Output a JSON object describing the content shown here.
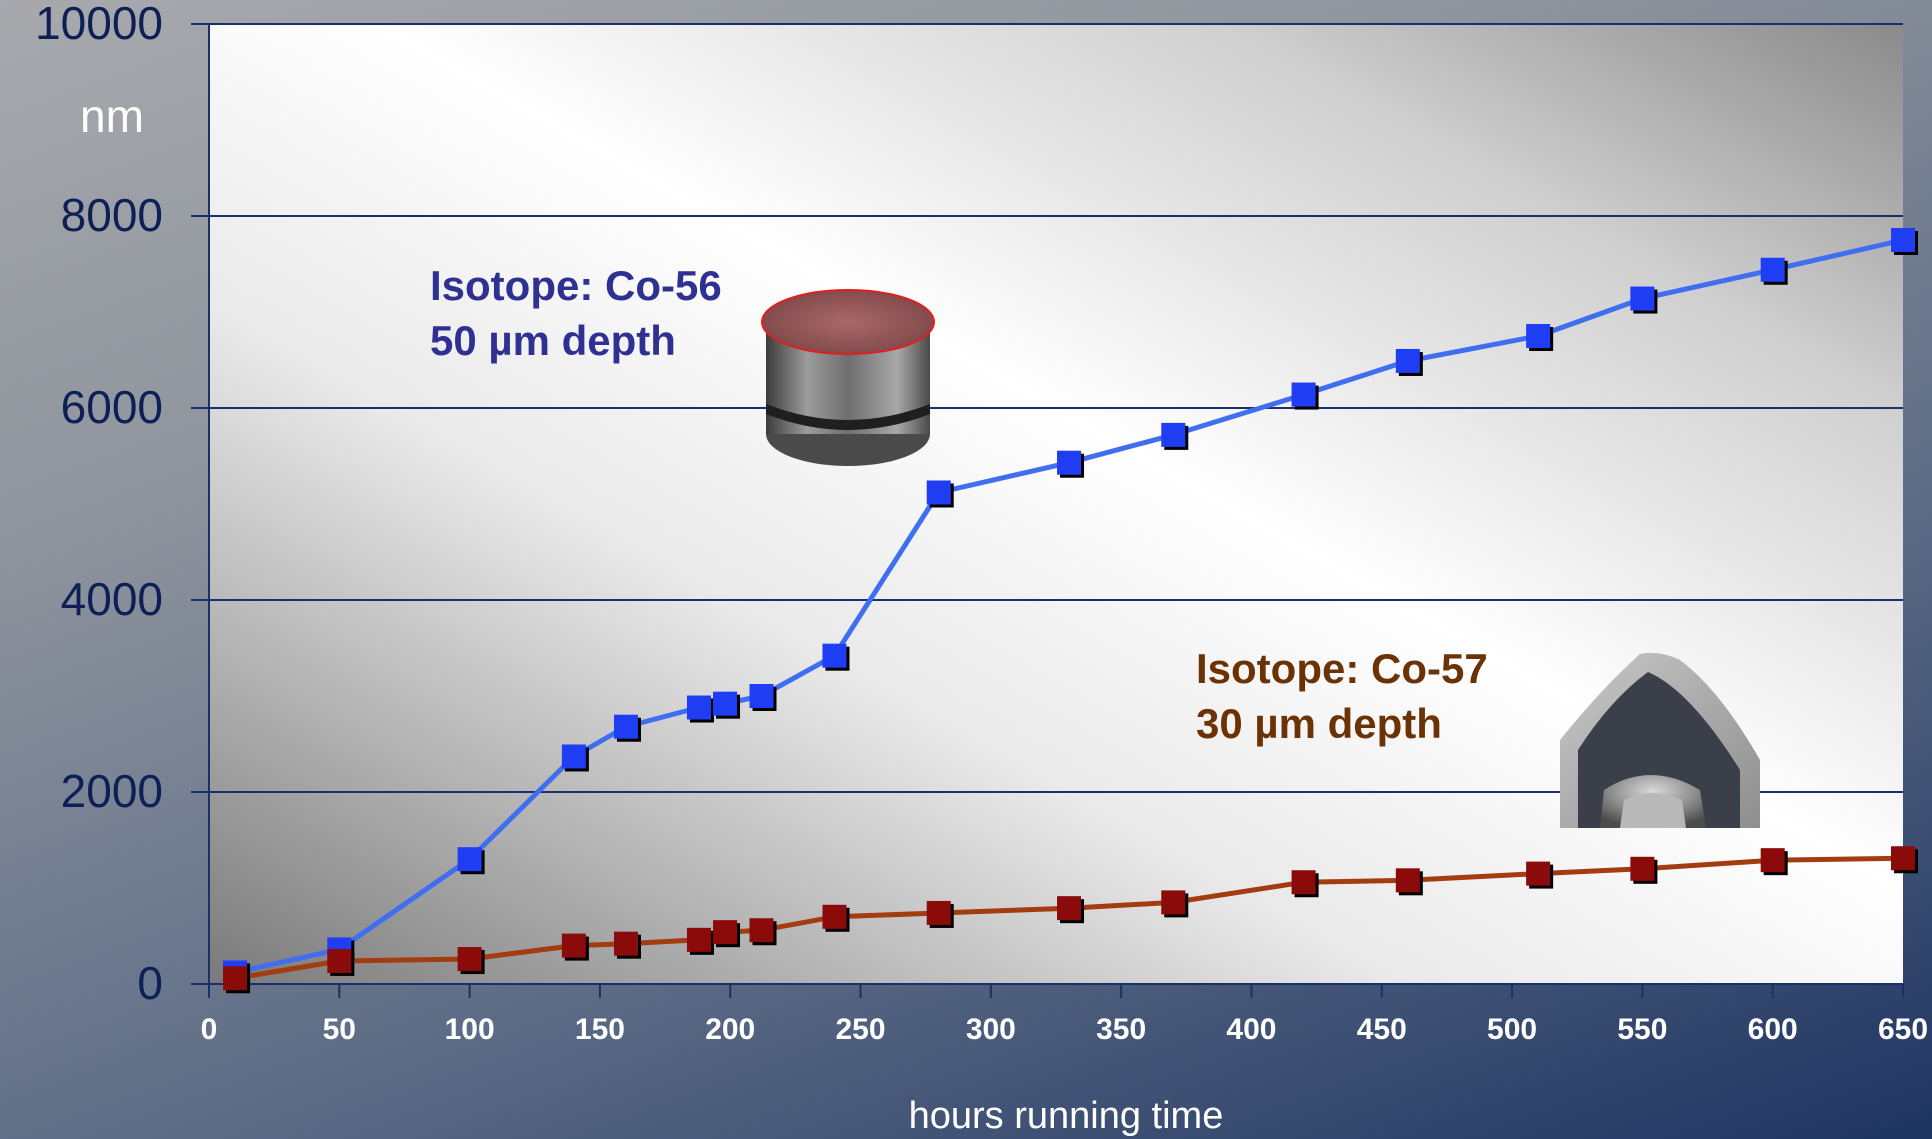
{
  "chart_data": {
    "type": "line",
    "title": "",
    "xlabel": "hours running time",
    "ylabel": "nm",
    "xlim": [
      0,
      650
    ],
    "ylim": [
      0,
      10000
    ],
    "x_ticks": [
      0,
      50,
      100,
      150,
      200,
      250,
      300,
      350,
      400,
      450,
      500,
      550,
      600,
      650
    ],
    "y_ticks": [
      0,
      2000,
      4000,
      6000,
      8000,
      10000
    ],
    "grid": "horizontal",
    "series": [
      {
        "color": "#1f3df2",
        "line_color": "#3f6ff0",
        "points": [
          [
            10,
            120
          ],
          [
            50,
            360
          ],
          [
            100,
            1300
          ],
          [
            140,
            2370
          ],
          [
            160,
            2680
          ],
          [
            188,
            2880
          ],
          [
            198,
            2920
          ],
          [
            212,
            3000
          ],
          [
            240,
            3420
          ],
          [
            280,
            5120
          ],
          [
            330,
            5430
          ],
          [
            370,
            5720
          ],
          [
            420,
            6140
          ],
          [
            460,
            6490
          ],
          [
            510,
            6750
          ],
          [
            550,
            7140
          ],
          [
            600,
            7440
          ],
          [
            650,
            7750
          ]
        ]
      },
      {
        "color": "#8b0b0b",
        "line_color": "#a33c10",
        "points": [
          [
            10,
            60
          ],
          [
            50,
            240
          ],
          [
            100,
            260
          ],
          [
            140,
            400
          ],
          [
            160,
            420
          ],
          [
            188,
            460
          ],
          [
            198,
            540
          ],
          [
            212,
            560
          ],
          [
            240,
            700
          ],
          [
            280,
            740
          ],
          [
            330,
            790
          ],
          [
            370,
            850
          ],
          [
            420,
            1060
          ],
          [
            460,
            1080
          ],
          [
            510,
            1150
          ],
          [
            550,
            1200
          ],
          [
            600,
            1290
          ],
          [
            650,
            1310
          ]
        ]
      }
    ],
    "annotations": [
      {
        "lines": [
          "Isotope: Co-56",
          "50 µm depth"
        ],
        "color": "#2e3192"
      },
      {
        "lines": [
          "Isotope: Co-57",
          "30 µm depth"
        ],
        "color": "#6b3305"
      }
    ],
    "photos": [
      {
        "icon": "cylinder-sample-photo"
      },
      {
        "icon": "valve-seat-photo"
      }
    ]
  }
}
